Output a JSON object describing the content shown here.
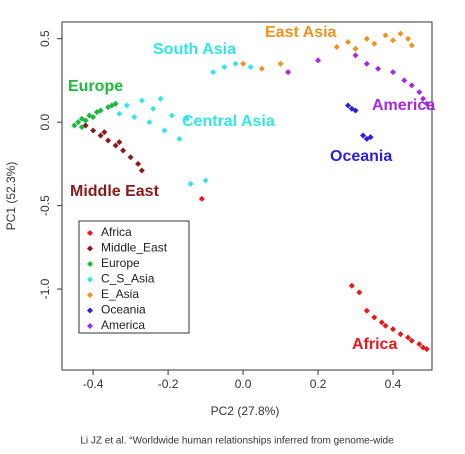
{
  "chart_data": {
    "type": "scatter",
    "xlabel": "PC2 (27.8%)",
    "ylabel": "PC1 (52.3%)",
    "source": "Li JZ et al. “Worldwide human relationships inferred from genome-wide",
    "xlim": [
      -0.483,
      0.504
    ],
    "ylim": [
      -1.485,
      0.6
    ],
    "xticks": [
      -0.4,
      -0.2,
      {
        "value": 0,
        "label": "0.0"
      },
      0.2,
      0.4
    ],
    "yticks": [
      {
        "value": -1,
        "label": "-1.0"
      },
      -0.5,
      {
        "value": 0,
        "label": "0.0"
      },
      0.5
    ],
    "legend": "bottom-left",
    "annotations": [
      {
        "text": "South Asia",
        "color": "#33e5e8"
      },
      {
        "text": "East Asia",
        "color": "#f0921c"
      },
      {
        "text": "Europe",
        "color": "#1db83c"
      },
      {
        "text": "Central Asia",
        "color": "#33e5e8"
      },
      {
        "text": "America",
        "color": "#a529e3"
      },
      {
        "text": "Oceania",
        "color": "#2a1ee0"
      },
      {
        "text": "Middle East",
        "color": "#8b1a1a"
      },
      {
        "text": "Africa",
        "color": "#e8181c"
      }
    ],
    "series": [
      {
        "name": "Africa",
        "color": "#e8181c",
        "x": [
          0.29,
          0.31,
          0.33,
          0.35,
          0.37,
          0.38,
          0.4,
          0.42,
          0.44,
          0.45,
          0.47,
          0.48,
          0.49,
          -0.11
        ],
        "y": [
          -0.98,
          -1.02,
          -1.13,
          -1.17,
          -1.2,
          -1.22,
          -1.24,
          -1.27,
          -1.29,
          -1.31,
          -1.33,
          -1.35,
          -1.36,
          -0.46
        ]
      },
      {
        "name": "Middle_East",
        "color": "#8b1a1a",
        "x": [
          -0.42,
          -0.4,
          -0.38,
          -0.37,
          -0.36,
          -0.34,
          -0.33,
          -0.32,
          -0.3,
          -0.28,
          -0.27
        ],
        "y": [
          -0.02,
          -0.05,
          -0.08,
          -0.06,
          -0.11,
          -0.14,
          -0.12,
          -0.17,
          -0.21,
          -0.25,
          -0.29
        ]
      },
      {
        "name": "Europe",
        "color": "#1db83c",
        "x": [
          -0.45,
          -0.44,
          -0.43,
          -0.43,
          -0.42,
          -0.41,
          -0.4,
          -0.39,
          -0.38,
          -0.36,
          -0.35,
          -0.34
        ],
        "y": [
          -0.02,
          0.0,
          0.02,
          -0.03,
          0.01,
          0.04,
          0.03,
          0.06,
          0.07,
          0.09,
          0.1,
          0.11
        ]
      },
      {
        "name": "C_S_Asia",
        "color": "#33e5e8",
        "x": [
          -0.33,
          -0.31,
          -0.29,
          -0.27,
          -0.25,
          -0.24,
          -0.22,
          -0.21,
          -0.19,
          -0.17,
          -0.15,
          -0.08,
          -0.05,
          -0.02,
          0.02,
          -0.1,
          -0.14
        ],
        "y": [
          0.05,
          0.1,
          0.03,
          0.13,
          0.0,
          0.08,
          0.14,
          -0.05,
          0.04,
          -0.1,
          0.02,
          0.3,
          0.33,
          0.35,
          0.33,
          -0.35,
          -0.37
        ]
      },
      {
        "name": "E_Asia",
        "color": "#f0921c",
        "x": [
          0.0,
          0.05,
          0.1,
          0.25,
          0.28,
          0.3,
          0.33,
          0.35,
          0.38,
          0.4,
          0.42,
          0.44,
          0.45
        ],
        "y": [
          0.35,
          0.32,
          0.35,
          0.45,
          0.48,
          0.44,
          0.5,
          0.47,
          0.52,
          0.49,
          0.53,
          0.5,
          0.46
        ]
      },
      {
        "name": "Oceania",
        "color": "#2a1ee0",
        "x": [
          0.28,
          0.29,
          0.3,
          0.32,
          0.33,
          0.34
        ],
        "y": [
          0.1,
          0.08,
          0.07,
          -0.08,
          -0.1,
          -0.09
        ]
      },
      {
        "name": "America",
        "color": "#a529e3",
        "x": [
          0.12,
          0.2,
          0.3,
          0.33,
          0.36,
          0.4,
          0.43,
          0.45,
          0.47,
          0.48,
          0.49
        ],
        "y": [
          0.3,
          0.37,
          0.4,
          0.35,
          0.32,
          0.3,
          0.25,
          0.22,
          0.18,
          0.14,
          0.11
        ]
      }
    ]
  }
}
